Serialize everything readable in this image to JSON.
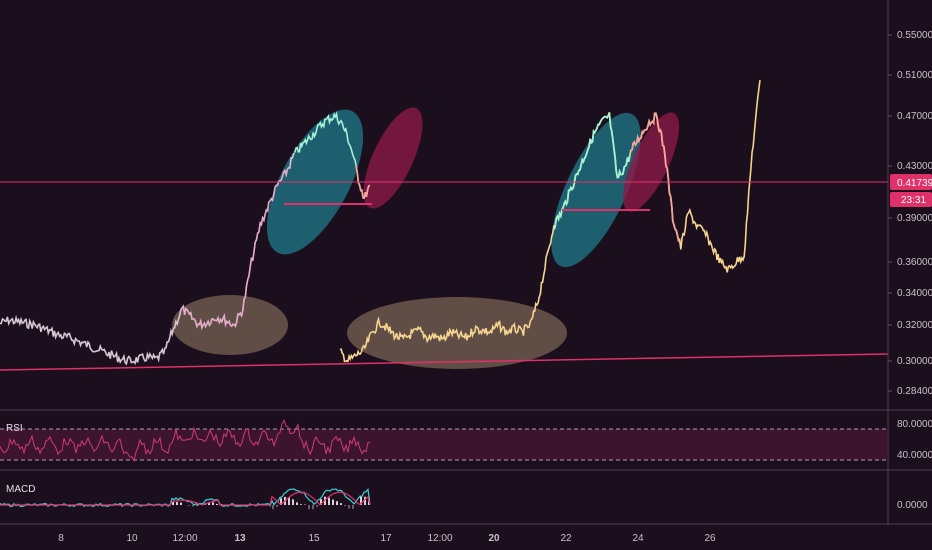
{
  "chart_data": {
    "type": "line",
    "price_axis": {
      "ticks": [
        "0.55000",
        "0.51000",
        "0.47000",
        "0.43000",
        "0.39000",
        "0.36000",
        "0.34000",
        "0.32000",
        "0.30000",
        "0.28400"
      ],
      "values": [
        0.55,
        0.51,
        0.47,
        0.43,
        0.39,
        0.36,
        0.34,
        0.32,
        0.3,
        0.284
      ],
      "current_price": "0.41739",
      "countdown": "23:31"
    },
    "time_axis": {
      "ticks": [
        "8",
        "10",
        "12:00",
        "13",
        "15",
        "17",
        "12:00",
        "20",
        "22",
        "24",
        "26"
      ],
      "bold": [
        "13",
        "20"
      ]
    },
    "series": [
      {
        "segment": "first",
        "x": [
          0,
          3,
          6,
          9,
          12,
          15,
          18,
          21,
          24,
          27,
          30,
          33,
          36,
          39,
          42,
          45,
          48,
          51,
          54,
          57,
          60,
          63,
          66,
          69,
          72,
          75,
          78,
          81,
          84,
          87,
          90,
          93,
          96,
          99,
          102
        ],
        "y": [
          0.321,
          0.323,
          0.322,
          0.321,
          0.32,
          0.318,
          0.316,
          0.314,
          0.313,
          0.311,
          0.309,
          0.307,
          0.305,
          0.303,
          0.301,
          0.3,
          0.301,
          0.302,
          0.301,
          0.305,
          0.318,
          0.33,
          0.325,
          0.32,
          0.322,
          0.325,
          0.323,
          0.32,
          0.33,
          0.36,
          0.385,
          0.4,
          0.415,
          0.425,
          0.44
        ]
      },
      {
        "segment": "first-peak",
        "x": [
          102,
          104,
          106,
          108,
          110,
          112,
          114,
          116,
          118,
          120,
          122,
          124,
          126,
          128
        ],
        "y": [
          0.44,
          0.445,
          0.45,
          0.455,
          0.46,
          0.465,
          0.468,
          0.47,
          0.465,
          0.455,
          0.44,
          0.42,
          0.405,
          0.415
        ]
      },
      {
        "segment": "second",
        "x": [
          130,
          133,
          136,
          139,
          142,
          145,
          148,
          151,
          154,
          157,
          160,
          163,
          166,
          169,
          172,
          175,
          178,
          181,
          184,
          187,
          190,
          193,
          196,
          199,
          202,
          205,
          208,
          211
        ],
        "y": [
          0.305,
          0.3,
          0.303,
          0.306,
          0.315,
          0.322,
          0.318,
          0.314,
          0.312,
          0.315,
          0.317,
          0.313,
          0.314,
          0.312,
          0.316,
          0.314,
          0.313,
          0.318,
          0.317,
          0.316,
          0.32,
          0.316,
          0.318,
          0.316,
          0.32,
          0.335,
          0.36,
          0.385
        ]
      },
      {
        "segment": "second-peak",
        "x": [
          211,
          214,
          217,
          220,
          223,
          226,
          229,
          232,
          235,
          238,
          241,
          244,
          247,
          250,
          253,
          256,
          259,
          262,
          265,
          268,
          271,
          274,
          277,
          280,
          283,
          286,
          289
        ],
        "y": [
          0.385,
          0.395,
          0.41,
          0.425,
          0.44,
          0.455,
          0.465,
          0.47,
          0.42,
          0.43,
          0.445,
          0.455,
          0.465,
          0.47,
          0.44,
          0.39,
          0.37,
          0.395,
          0.385,
          0.38,
          0.37,
          0.36,
          0.355,
          0.36,
          0.365,
          0.44,
          0.505
        ]
      }
    ],
    "horizontal_lines": [
      {
        "name": "current-price-line",
        "price": 0.41739
      }
    ],
    "trend_line": {
      "from": [
        0,
        0.2935
      ],
      "to": [
        289,
        0.303
      ]
    },
    "panes": {
      "rsi": {
        "label": "RSI",
        "ticks": [
          "80.0000",
          "40.0000"
        ],
        "values": [
          80,
          40
        ],
        "band": [
          70,
          30
        ]
      },
      "macd": {
        "label": "MACD",
        "ticks": [
          "0.0000"
        ],
        "values": [
          0
        ]
      }
    },
    "grid": false
  },
  "colors": {
    "background": "#1b0e1d",
    "first_series": "#d7c6d4",
    "second_series": "#f6d58e",
    "teal_series": "#a7f0d3",
    "salmon_series": "#f6a39a",
    "pink_line": "#e0306a",
    "teal_ellipse": "#1e8c9b",
    "crimson_ellipse": "#8a1a47",
    "tan_ellipse": "#b59b7a",
    "rsi_band": "#4a1736"
  }
}
